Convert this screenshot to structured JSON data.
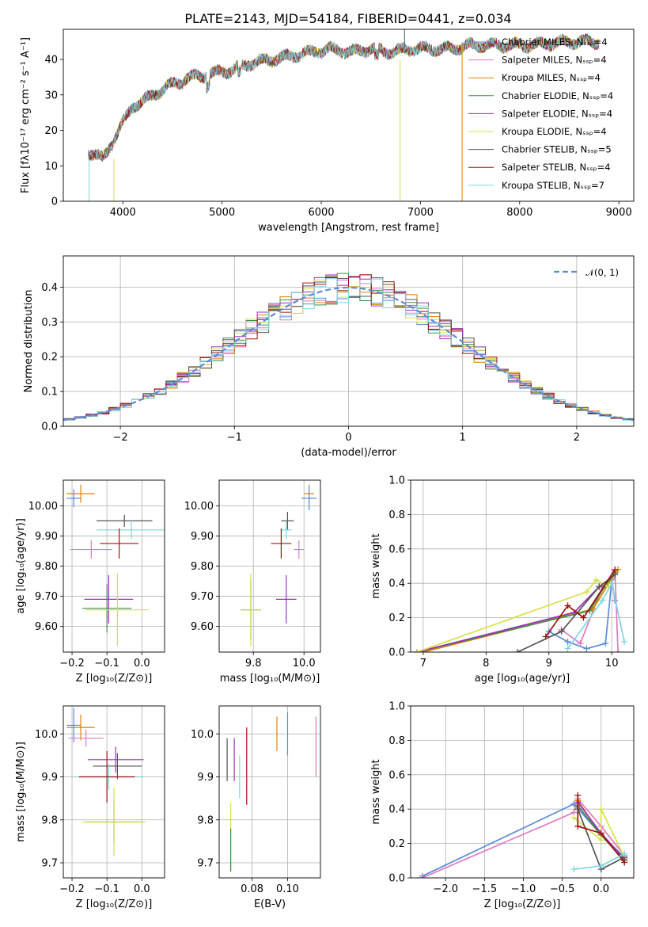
{
  "figure": {
    "title": "PLATE=2143, MJD=54184, FIBERID=0441, z=0.034"
  },
  "chart_data": [
    {
      "id": "spectrum",
      "type": "line",
      "xlabel": "wavelength [Angstrom, rest frame]",
      "ylabel": "Flux [fλ10⁻¹⁷ erg cm⁻² s⁻¹ A⁻¹]",
      "xlim": [
        3400,
        9150
      ],
      "ylim": [
        0,
        48.5
      ],
      "xticks": [
        4000,
        5000,
        6000,
        7000,
        8000,
        9000
      ],
      "yticks": [
        0,
        10,
        20,
        30,
        40
      ],
      "grid": false,
      "legend_position": "right",
      "legend": [
        {
          "name": "Chabrier MILES, Nₛₛₚ=4",
          "color": "#5b8bd9"
        },
        {
          "name": "Salpeter MILES, Nₛₛₚ=4",
          "color": "#e07ac0"
        },
        {
          "name": "Kroupa MILES, Nₛₛₚ=4",
          "color": "#d98200"
        },
        {
          "name": "Chabrier ELODIE, Nₛₛₚ=4",
          "color": "#3f8f3f"
        },
        {
          "name": "Salpeter ELODIE, Nₛₛₚ=4",
          "color": "#9b30b8"
        },
        {
          "name": "Kroupa ELODIE, Nₛₛₚ=4",
          "color": "#d7e04a"
        },
        {
          "name": "Chabrier STELIB, Nₛₛₚ=5",
          "color": "#555555"
        },
        {
          "name": "Salpeter STELIB, Nₛₛₚ=4",
          "color": "#a01010"
        },
        {
          "name": "Kroupa STELIB, Nₛₛₚ=7",
          "color": "#7fd6e0"
        }
      ],
      "continuum_points": [
        [
          3650,
          14
        ],
        [
          3800,
          12
        ],
        [
          3900,
          17
        ],
        [
          4000,
          22
        ],
        [
          4100,
          27
        ],
        [
          4200,
          28
        ],
        [
          4300,
          30
        ],
        [
          4500,
          33
        ],
        [
          4700,
          35
        ],
        [
          4900,
          36
        ],
        [
          5100,
          37
        ],
        [
          5300,
          39
        ],
        [
          5500,
          40
        ],
        [
          5700,
          41
        ],
        [
          5900,
          42
        ],
        [
          6100,
          43
        ],
        [
          6300,
          42
        ],
        [
          6500,
          43
        ],
        [
          6700,
          42
        ],
        [
          6900,
          43
        ],
        [
          7100,
          43
        ],
        [
          7300,
          43
        ],
        [
          7500,
          44
        ],
        [
          7700,
          44
        ],
        [
          7900,
          44
        ],
        [
          8100,
          44
        ],
        [
          8300,
          44.5
        ],
        [
          8500,
          45
        ],
        [
          8700,
          45
        ]
      ]
    },
    {
      "id": "residuals",
      "type": "line",
      "xlabel": "(data-model)/error",
      "ylabel": "Normed distribution",
      "xlim": [
        -2.5,
        2.5
      ],
      "ylim": [
        0,
        0.49
      ],
      "xticks": [
        -2,
        -1,
        0,
        1,
        2
      ],
      "yticks": [
        0.0,
        0.1,
        0.2,
        0.3,
        0.4
      ],
      "grid": true,
      "legend_position": "top-right",
      "legend": [
        {
          "name": "𝒩(0, 1)",
          "color": "#5b8bd9"
        }
      ],
      "gaussian": {
        "mu": 0,
        "sigma": 1
      }
    },
    {
      "id": "age-vs-Z",
      "type": "scatter",
      "xlabel": "Z [log₁₀(Z/Z⊙)]",
      "ylabel": "age  [log₁₀(age/yr)]",
      "xlim": [
        -0.225,
        0.065
      ],
      "ylim": [
        9.515,
        10.085
      ],
      "xticks": [
        -0.2,
        -0.1,
        0.0
      ],
      "yticks": [
        9.6,
        9.7,
        9.8,
        9.9,
        10.0
      ],
      "grid": true,
      "points": [
        {
          "x": -0.195,
          "y": 10.025,
          "xerr": 0.02,
          "yerr": 0.03,
          "color": "#5b8bd9"
        },
        {
          "x": -0.175,
          "y": 10.04,
          "xerr": 0.04,
          "yerr": 0.03,
          "color": "#d98200"
        },
        {
          "x": -0.05,
          "y": 9.95,
          "xerr": 0.08,
          "yerr": 0.02,
          "color": "#555555"
        },
        {
          "x": -0.03,
          "y": 9.92,
          "xerr": 0.1,
          "yerr": 0.03,
          "color": "#7fd6e0"
        },
        {
          "x": -0.145,
          "y": 9.855,
          "xerr": 0.06,
          "yerr": 0.03,
          "color": "#e07ac0"
        },
        {
          "x": -0.065,
          "y": 9.875,
          "xerr": 0.055,
          "yerr": 0.05,
          "color": "#a01010"
        },
        {
          "x": -0.095,
          "y": 9.69,
          "xerr": 0.07,
          "yerr": 0.08,
          "color": "#9b30b8"
        },
        {
          "x": -0.1,
          "y": 9.66,
          "xerr": 0.07,
          "yerr": 0.08,
          "color": "#3f8f3f"
        },
        {
          "x": -0.07,
          "y": 9.655,
          "xerr": 0.09,
          "yerr": 0.12,
          "color": "#d7e04a"
        }
      ]
    },
    {
      "id": "age-vs-mass",
      "type": "scatter",
      "xlabel": "mass [log₁₀(M/M⊙)]",
      "ylabel": "",
      "xlim": [
        9.665,
        10.065
      ],
      "ylim": [
        9.515,
        10.085
      ],
      "xticks": [
        9.8,
        10.0
      ],
      "yticks": [
        9.6,
        9.7,
        9.8,
        9.9,
        10.0
      ],
      "grid": true,
      "points": [
        {
          "x": 10.02,
          "y": 10.04,
          "xerr": 0.02,
          "yerr": 0.03,
          "color": "#d98200"
        },
        {
          "x": 10.02,
          "y": 10.025,
          "xerr": 0.03,
          "yerr": 0.04,
          "color": "#5b8bd9"
        },
        {
          "x": 9.935,
          "y": 9.95,
          "xerr": 0.025,
          "yerr": 0.03,
          "color": "#555555"
        },
        {
          "x": 9.93,
          "y": 9.92,
          "xerr": 0.02,
          "yerr": 0.03,
          "color": "#7fd6e0"
        },
        {
          "x": 9.98,
          "y": 9.855,
          "xerr": 0.02,
          "yerr": 0.03,
          "color": "#e07ac0"
        },
        {
          "x": 9.91,
          "y": 9.875,
          "xerr": 0.04,
          "yerr": 0.05,
          "color": "#a01010"
        },
        {
          "x": 9.93,
          "y": 9.69,
          "xerr": 0.04,
          "yerr": 0.08,
          "color": "#9b30b8"
        },
        {
          "x": 9.79,
          "y": 9.655,
          "xerr": 0.04,
          "yerr": 0.1,
          "color": "#3f8f3f"
        },
        {
          "x": 9.79,
          "y": 9.655,
          "xerr": 0.04,
          "yerr": 0.12,
          "color": "#d7e04a"
        }
      ]
    },
    {
      "id": "mass-weight-vs-age",
      "type": "line",
      "xlabel": "age  [log₁₀(age/yr)]",
      "ylabel": "mass weight",
      "xlim": [
        6.8,
        10.35
      ],
      "ylim": [
        0,
        1.0
      ],
      "xticks": [
        7,
        8,
        9,
        10
      ],
      "yticks": [
        0.0,
        0.2,
        0.4,
        0.6,
        0.8,
        1.0
      ],
      "grid": true,
      "series": [
        {
          "color": "#5b8bd9",
          "x": [
            9.0,
            9.3,
            9.6,
            9.9,
            10.0,
            10.05
          ],
          "y": [
            0.12,
            0.06,
            0.02,
            0.05,
            0.42,
            0.3
          ]
        },
        {
          "color": "#e07ac0",
          "x": [
            9.2,
            9.5,
            9.85,
            10.05,
            10.1
          ],
          "y": [
            0.13,
            0.05,
            0.38,
            0.47,
            0.0
          ]
        },
        {
          "color": "#d98200",
          "x": [
            7.0,
            9.7,
            10.0,
            10.1
          ],
          "y": [
            0.0,
            0.25,
            0.43,
            0.48
          ]
        },
        {
          "color": "#3f8f3f",
          "x": [
            6.9,
            9.65,
            9.9,
            10.05
          ],
          "y": [
            0.0,
            0.24,
            0.39,
            0.46
          ]
        },
        {
          "color": "#9b30b8",
          "x": [
            6.9,
            9.4,
            9.8,
            10.05
          ],
          "y": [
            0.0,
            0.23,
            0.38,
            0.45
          ]
        },
        {
          "color": "#d7e04a",
          "x": [
            6.9,
            9.6,
            9.75,
            9.95
          ],
          "y": [
            0.0,
            0.35,
            0.42,
            0.38
          ]
        },
        {
          "color": "#555555",
          "x": [
            8.5,
            9.2,
            9.8,
            10.05
          ],
          "y": [
            0.0,
            0.12,
            0.38,
            0.45
          ]
        },
        {
          "color": "#a01010",
          "x": [
            8.95,
            9.3,
            9.55,
            10.05
          ],
          "y": [
            0.09,
            0.27,
            0.2,
            0.48
          ]
        },
        {
          "color": "#7fd6e0",
          "x": [
            9.3,
            9.85,
            10.0,
            10.2
          ],
          "y": [
            0.02,
            0.3,
            0.4,
            0.06
          ]
        }
      ]
    },
    {
      "id": "mass-vs-Z",
      "type": "scatter",
      "xlabel": "Z [log₁₀(Z/Z⊙)]",
      "ylabel": "mass [log₁₀(M/M⊙)]",
      "xlim": [
        -0.225,
        0.065
      ],
      "ylim": [
        9.665,
        10.065
      ],
      "xticks": [
        -0.2,
        -0.1,
        0.0
      ],
      "yticks": [
        9.7,
        9.8,
        9.9,
        10.0
      ],
      "grid": true,
      "points": [
        {
          "x": -0.195,
          "y": 10.02,
          "xerr": 0.02,
          "yerr": 0.04,
          "color": "#5b8bd9"
        },
        {
          "x": -0.175,
          "y": 10.015,
          "xerr": 0.04,
          "yerr": 0.03,
          "color": "#d98200"
        },
        {
          "x": -0.16,
          "y": 9.99,
          "xerr": 0.05,
          "yerr": 0.02,
          "color": "#e07ac0"
        },
        {
          "x": -0.075,
          "y": 9.94,
          "xerr": 0.08,
          "yerr": 0.03,
          "color": "#9b30b8"
        },
        {
          "x": -0.07,
          "y": 9.925,
          "xerr": 0.07,
          "yerr": 0.03,
          "color": "#555555"
        },
        {
          "x": -0.095,
          "y": 9.9,
          "xerr": 0.1,
          "yerr": 0.03,
          "color": "#7fd6e0"
        },
        {
          "x": -0.1,
          "y": 9.9,
          "xerr": 0.08,
          "yerr": 0.06,
          "color": "#a01010"
        },
        {
          "x": -0.08,
          "y": 9.795,
          "xerr": 0.08,
          "yerr": 0.05,
          "color": "#3f8f3f"
        },
        {
          "x": -0.08,
          "y": 9.795,
          "xerr": 0.09,
          "yerr": 0.08,
          "color": "#d7e04a"
        }
      ]
    },
    {
      "id": "mass-vs-EBV",
      "type": "scatter",
      "xlabel": "E(B-V)",
      "ylabel": "",
      "xlim": [
        0.0615,
        0.1185
      ],
      "ylim": [
        9.665,
        10.065
      ],
      "xticks": [
        0.08,
        0.1
      ],
      "yticks": [
        9.7,
        9.8,
        9.9,
        10.0
      ],
      "grid": true,
      "points": [
        {
          "x": 0.094,
          "y": 10.0,
          "xerr": 0,
          "yerr": 0.04,
          "color": "#d98200"
        },
        {
          "x": 0.1,
          "y": 10.0,
          "xerr": 0,
          "yerr": 0.05,
          "color": "#5b8bd9"
        },
        {
          "x": 0.116,
          "y": 9.97,
          "xerr": 0,
          "yerr": 0.07,
          "color": "#e07ac0"
        },
        {
          "x": 0.077,
          "y": 9.925,
          "xerr": 0,
          "yerr": 0.09,
          "color": "#a01010"
        },
        {
          "x": 0.07,
          "y": 9.94,
          "xerr": 0,
          "yerr": 0.05,
          "color": "#9b30b8"
        },
        {
          "x": 0.066,
          "y": 9.94,
          "xerr": 0,
          "yerr": 0.05,
          "color": "#555555"
        },
        {
          "x": 0.073,
          "y": 9.9,
          "xerr": 0,
          "yerr": 0.05,
          "color": "#7fd6e0"
        },
        {
          "x": 0.068,
          "y": 9.76,
          "xerr": 0,
          "yerr": 0.08,
          "color": "#d7e04a"
        },
        {
          "x": 0.068,
          "y": 9.73,
          "xerr": 0,
          "yerr": 0.05,
          "color": "#3f8f3f"
        }
      ]
    },
    {
      "id": "mass-weight-vs-Z",
      "type": "line",
      "xlabel": "Z [log₁₀(Z/Z⊙)]",
      "ylabel": "mass weight",
      "xlim": [
        -2.45,
        0.42
      ],
      "ylim": [
        0,
        1.0
      ],
      "xticks": [
        -2.0,
        -1.5,
        -1.0,
        -0.5,
        0.0
      ],
      "yticks": [
        0.0,
        0.2,
        0.4,
        0.6,
        0.8,
        1.0
      ],
      "grid": true,
      "series": [
        {
          "color": "#5b8bd9",
          "x": [
            -2.3,
            -0.35,
            0.0,
            0.3
          ],
          "y": [
            0.01,
            0.43,
            0.25,
            0.12
          ]
        },
        {
          "color": "#e07ac0",
          "x": [
            -2.3,
            -0.35,
            -0.3,
            0.0,
            0.3
          ],
          "y": [
            0.0,
            0.38,
            0.46,
            0.3,
            0.13
          ]
        },
        {
          "color": "#d98200",
          "x": [
            -0.3,
            0.0,
            0.3
          ],
          "y": [
            0.45,
            0.25,
            0.1
          ]
        },
        {
          "color": "#3f8f3f",
          "x": [
            -0.3,
            0.0,
            0.3
          ],
          "y": [
            0.42,
            0.25,
            0.1
          ]
        },
        {
          "color": "#9b30b8",
          "x": [
            -0.3,
            0.0,
            0.3
          ],
          "y": [
            0.44,
            0.26,
            0.11
          ]
        },
        {
          "color": "#d7e04a",
          "x": [
            -0.35,
            0.0,
            0.0,
            0.3
          ],
          "y": [
            0.35,
            0.22,
            0.4,
            0.12
          ]
        },
        {
          "color": "#555555",
          "x": [
            -0.3,
            0.0,
            0.3
          ],
          "y": [
            0.4,
            0.05,
            0.12
          ]
        },
        {
          "color": "#a01010",
          "x": [
            -0.3,
            -0.3,
            0.0,
            0.3
          ],
          "y": [
            0.48,
            0.3,
            0.26,
            0.09
          ]
        },
        {
          "color": "#7fd6e0",
          "x": [
            -0.35,
            0.0,
            0.3
          ],
          "y": [
            0.05,
            0.07,
            0.14
          ]
        }
      ]
    }
  ]
}
